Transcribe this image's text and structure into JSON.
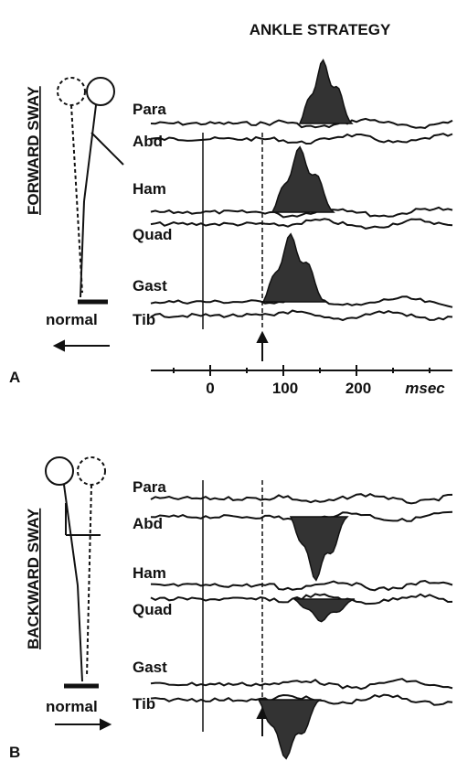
{
  "figure": {
    "title": "ANKLE STRATEGY",
    "panels": [
      {
        "letter": "A",
        "sway_label": "FORWARD SWAY",
        "stance_label": "normal",
        "muscles": [
          "Para",
          "Abd",
          "Ham",
          "Quad",
          "Gast",
          "Tib"
        ]
      },
      {
        "letter": "B",
        "sway_label": "BACKWARD SWAY",
        "stance_label": "normal",
        "muscles": [
          "Para",
          "Abd",
          "Ham",
          "Quad",
          "Gast",
          "Tib"
        ]
      }
    ],
    "axis_labels": [
      "0",
      "100",
      "200",
      "msec"
    ]
  }
}
